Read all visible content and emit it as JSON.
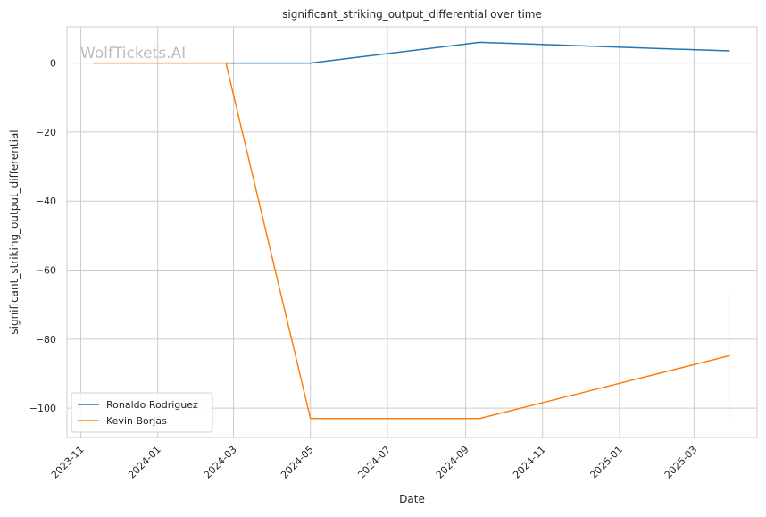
{
  "chart_data": {
    "type": "line",
    "title": "significant_striking_output_differential over time",
    "xlabel": "Date",
    "ylabel": "significant_striking_output_differential",
    "watermark": "WolfTickets.AI",
    "grid": true,
    "legend_position": "lower-left",
    "xlim": [
      "2023-10-21",
      "2025-04-20"
    ],
    "ylim": [
      -108.5,
      10.5
    ],
    "x_ticks": [
      "2023-11-01",
      "2024-01-01",
      "2024-03-01",
      "2024-05-01",
      "2024-07-01",
      "2024-09-01",
      "2024-11-01",
      "2025-01-01",
      "2025-03-01"
    ],
    "x_tick_labels": [
      "2023-11",
      "2024-01",
      "2024-03",
      "2024-05",
      "2024-07",
      "2024-09",
      "2024-11",
      "2025-01",
      "2025-03"
    ],
    "y_ticks": [
      0,
      -20,
      -40,
      -60,
      -80,
      -100
    ],
    "y_tick_labels": [
      "0",
      "−20",
      "−40",
      "−60",
      "−80",
      "−100"
    ],
    "series": [
      {
        "name": "Ronaldo Rodriguez",
        "color": "#1f77b4",
        "x": [
          "2024-02-24",
          "2024-05-01",
          "2024-09-12",
          "2025-03-29"
        ],
        "values": [
          0,
          0,
          6,
          3.5
        ]
      },
      {
        "name": "Kevin Borjas",
        "color": "#ff7f0e",
        "x": [
          "2023-11-11",
          "2024-02-24",
          "2024-05-01",
          "2024-09-12",
          "2025-03-29"
        ],
        "values": [
          0,
          0,
          -103,
          -103,
          -84.8
        ]
      }
    ],
    "band": {
      "x": "2025-03-29",
      "y_range": [
        -103,
        -66.5
      ],
      "color": "#ff7f0e"
    }
  }
}
